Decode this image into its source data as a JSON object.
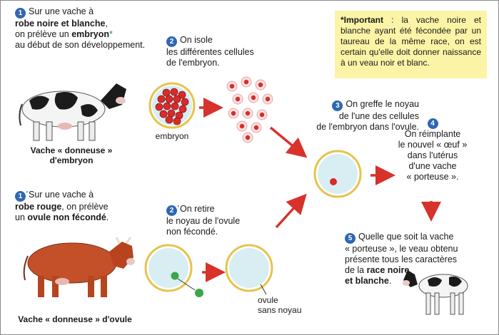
{
  "colors": {
    "step_badge": "#2f67b1",
    "arrow": "#d7322b",
    "note_bg": "#fbf4a6",
    "cell_ring": "#e6c34a",
    "cell_fill": "#d9eef3",
    "nucleus_green": "#3aa64a",
    "nucleus_red": "#d92b2b"
  },
  "icons": [
    "black-white-cow-icon",
    "red-cow-icon",
    "calf-icon",
    "embryo-icon",
    "cell-icon",
    "arrow-icon"
  ],
  "note": {
    "label": "*Important",
    "text": " : la vache noire et blanche ayant été fécondée par un taureau de la même race, on est certain qu'elle doit donner naissance à un veau noir et blanc."
  },
  "step1": {
    "badge": "1",
    "line1": "Sur une vache à",
    "bold1": "robe noire et blanche",
    "line2b": ",",
    "line3a": "on prélève un ",
    "bold2": "embryon",
    "star": "*",
    "line4": "au début de son développement."
  },
  "step1p": {
    "badge": "1",
    "line1": "Sur une vache à",
    "bold1": "robe rouge",
    "line2b": ", on prélève",
    "line3a": "un ",
    "bold2": "ovule non fécondé",
    "line3b": "."
  },
  "step2": {
    "badge": "2",
    "line1": "On isole",
    "line2": "les différentes cellules",
    "line3": "de l'embryon."
  },
  "step2p": {
    "badge": "2",
    "line1": "On retire",
    "line2": "le noyau de l'ovule",
    "line3": "non fécondé."
  },
  "step3": {
    "badge": "3",
    "line1": "On greffe le noyau",
    "line2": "de l'une des cellules",
    "line3": "de l'embryon dans l'ovule."
  },
  "step4": {
    "badge": "4",
    "line1": "On réimplante",
    "line2": "le nouvel « œuf »",
    "line3": "dans l'utérus",
    "line4": "d'une vache",
    "line5": "« porteuse »."
  },
  "step5": {
    "badge": "5",
    "line1": "Quelle que soit la vache",
    "line2": "« porteuse », le veau obtenu",
    "line3": "présente tous les caractères",
    "line4a": "de la ",
    "bold1": "race noire",
    "bold2": "et blanche",
    "line5b": "."
  },
  "captions": {
    "donor_embryo": "Vache « donneuse » d'embryon",
    "donor_ovule": "Vache « donneuse » d'ovule",
    "embryon": "embryon",
    "ovule_line1": "ovule",
    "ovule_line2": "sans noyau"
  }
}
